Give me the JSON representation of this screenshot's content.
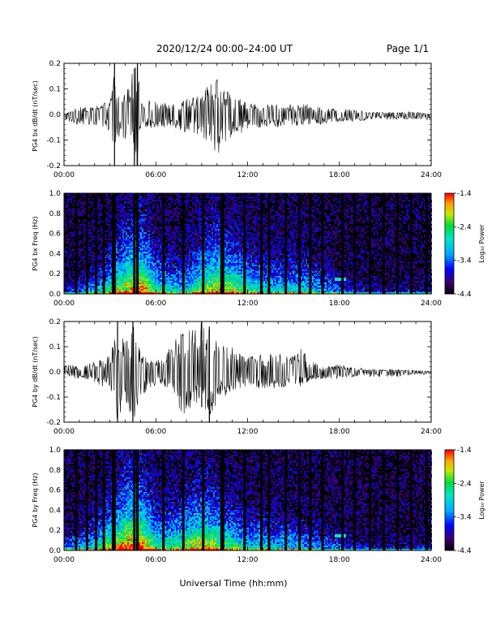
{
  "header": {
    "title": "2020/12/24  00:00–24:00 UT",
    "page": "Page 1/1"
  },
  "xlabel": "Universal Time (hh:mm)",
  "chart_data": [
    {
      "type": "line",
      "ylabel": "PG4 bx dB/dt (nT/sec)",
      "xlim": [
        "00:00",
        "24:00"
      ],
      "xticks": [
        "00:00",
        "06:00",
        "12:00",
        "18:00",
        "24:00"
      ],
      "ylim": [
        -0.2,
        0.2
      ],
      "yticks": [
        "-0.2",
        "-0.1",
        "0.0",
        "0.1",
        "0.2"
      ],
      "series": [
        {
          "x_hours": [
            0,
            1,
            2,
            3,
            3.3,
            3.4,
            4,
            4.6,
            4.8,
            5,
            6,
            7,
            8,
            9,
            9.7,
            10,
            10.3,
            11,
            12,
            13,
            14,
            15,
            16,
            17,
            18,
            19,
            20,
            21,
            22,
            23,
            24
          ],
          "y_max": [
            0.0,
            0.03,
            0.04,
            0.05,
            0.2,
            0.08,
            0.1,
            0.18,
            0.2,
            0.06,
            0.05,
            0.04,
            0.06,
            0.08,
            0.14,
            0.15,
            0.1,
            0.08,
            0.05,
            0.04,
            0.04,
            0.04,
            0.04,
            0.03,
            0.03,
            0.02,
            0.01,
            0.01,
            0.01,
            0.01,
            0.0
          ],
          "y_min": [
            -0.03,
            -0.04,
            -0.04,
            -0.07,
            -0.2,
            -0.09,
            -0.1,
            -0.2,
            -0.2,
            -0.06,
            -0.05,
            -0.05,
            -0.07,
            -0.09,
            -0.12,
            -0.18,
            -0.12,
            -0.09,
            -0.06,
            -0.05,
            -0.05,
            -0.05,
            -0.04,
            -0.04,
            -0.03,
            -0.03,
            -0.02,
            -0.02,
            -0.02,
            -0.02,
            -0.02
          ]
        }
      ]
    },
    {
      "type": "heatmap",
      "ylabel": "PG4 bx Freq (Hz)",
      "xlim": [
        "00:00",
        "24:00"
      ],
      "xticks": [
        "00:00",
        "06:00",
        "12:00",
        "18:00",
        "24:00"
      ],
      "ylim": [
        0.0,
        1.0
      ],
      "yticks": [
        "0.0",
        "0.2",
        "0.4",
        "0.6",
        "0.8",
        "1.0"
      ],
      "colorbar": {
        "label": "Log₁₀ Power",
        "range": [
          -4.4,
          -1.4
        ],
        "ticks": [
          "-1.4",
          "-2.4",
          "-3.4",
          "-4.4"
        ]
      },
      "activity_hours": [
        0,
        1,
        2,
        3,
        4,
        5,
        6,
        7,
        8,
        9,
        10,
        11,
        12,
        13,
        14,
        15,
        16,
        17,
        18,
        19,
        20,
        21,
        22,
        23,
        24
      ],
      "activity_band_top_hz": [
        0.05,
        0.1,
        0.15,
        0.25,
        0.35,
        0.4,
        0.25,
        0.2,
        0.2,
        0.3,
        0.35,
        0.3,
        0.25,
        0.2,
        0.2,
        0.2,
        0.2,
        0.15,
        0.1,
        0.08,
        0.05,
        0.05,
        0.05,
        0.05,
        0.05
      ],
      "vertical_gaps_hours": [
        0.8,
        1.5,
        2.1,
        2.6,
        3.2,
        3.3,
        4.6,
        4.8,
        6.5,
        7.8,
        9.1,
        10.3,
        10.4,
        11.8,
        12.9,
        13.4,
        14.5,
        15.4,
        16.1,
        16.9,
        18.2,
        19.0,
        20.0,
        20.9,
        21.8,
        22.7,
        23.7
      ],
      "noted_feature": "18:00 line near 0.15 Hz"
    },
    {
      "type": "line",
      "ylabel": "PG4 by dB/dt (nT/sec)",
      "xlim": [
        "00:00",
        "24:00"
      ],
      "xticks": [
        "00:00",
        "06:00",
        "12:00",
        "18:00",
        "24:00"
      ],
      "ylim": [
        -0.2,
        0.2
      ],
      "yticks": [
        "-0.2",
        "-0.1",
        "0.0",
        "0.1",
        "0.2"
      ],
      "series": [
        {
          "x_hours": [
            0,
            1,
            2,
            3,
            3.5,
            4,
            4.5,
            5,
            6,
            7,
            7.5,
            8,
            8.5,
            9,
            9.5,
            10,
            10.5,
            11,
            12,
            13,
            14,
            15,
            15.5,
            16,
            17,
            18,
            19,
            20,
            21,
            22,
            23,
            24
          ],
          "y_max": [
            0.03,
            0.02,
            0.04,
            0.07,
            0.2,
            0.14,
            0.2,
            0.08,
            0.04,
            0.1,
            0.17,
            0.16,
            0.18,
            0.2,
            0.18,
            0.12,
            0.1,
            0.1,
            0.06,
            0.07,
            0.08,
            0.06,
            0.1,
            0.05,
            0.02,
            0.03,
            0.02,
            0.01,
            0.01,
            0.01,
            0.01,
            0.0
          ],
          "y_min": [
            -0.02,
            -0.03,
            -0.04,
            -0.08,
            -0.2,
            -0.12,
            -0.2,
            -0.1,
            -0.05,
            -0.08,
            -0.15,
            -0.18,
            -0.15,
            -0.14,
            -0.2,
            -0.12,
            -0.1,
            -0.08,
            -0.06,
            -0.07,
            -0.07,
            -0.05,
            -0.06,
            -0.04,
            -0.03,
            -0.03,
            -0.02,
            -0.02,
            -0.02,
            -0.02,
            -0.01,
            -0.01
          ]
        }
      ]
    },
    {
      "type": "heatmap",
      "ylabel": "PG4 by Freq (Hz)",
      "xlim": [
        "00:00",
        "24:00"
      ],
      "xticks": [
        "00:00",
        "06:00",
        "12:00",
        "18:00",
        "24:00"
      ],
      "ylim": [
        0.0,
        1.0
      ],
      "yticks": [
        "0.0",
        "0.2",
        "0.4",
        "0.6",
        "0.8",
        "1.0"
      ],
      "colorbar": {
        "label": "Log₁₀ Power",
        "range": [
          -4.4,
          -1.4
        ],
        "ticks": [
          "-1.4",
          "-2.4",
          "-3.4",
          "-4.4"
        ]
      },
      "activity_hours": [
        0,
        1,
        2,
        3,
        4,
        5,
        6,
        7,
        8,
        9,
        10,
        11,
        12,
        13,
        14,
        15,
        16,
        17,
        18,
        19,
        20,
        21,
        22,
        23,
        24
      ],
      "activity_band_top_hz": [
        0.1,
        0.15,
        0.2,
        0.3,
        0.4,
        0.4,
        0.25,
        0.25,
        0.3,
        0.35,
        0.3,
        0.25,
        0.2,
        0.2,
        0.18,
        0.18,
        0.15,
        0.12,
        0.1,
        0.08,
        0.05,
        0.05,
        0.05,
        0.05,
        0.05
      ],
      "vertical_gaps_hours": [
        0.8,
        1.5,
        2.1,
        2.6,
        3.2,
        3.3,
        4.6,
        4.8,
        6.5,
        7.8,
        9.1,
        10.3,
        10.4,
        11.8,
        12.9,
        13.4,
        14.5,
        15.4,
        16.1,
        16.9,
        18.2,
        19.0,
        20.0,
        20.9,
        21.8,
        22.7,
        23.7
      ],
      "noted_feature": "18:00 line near 0.15 Hz"
    }
  ]
}
